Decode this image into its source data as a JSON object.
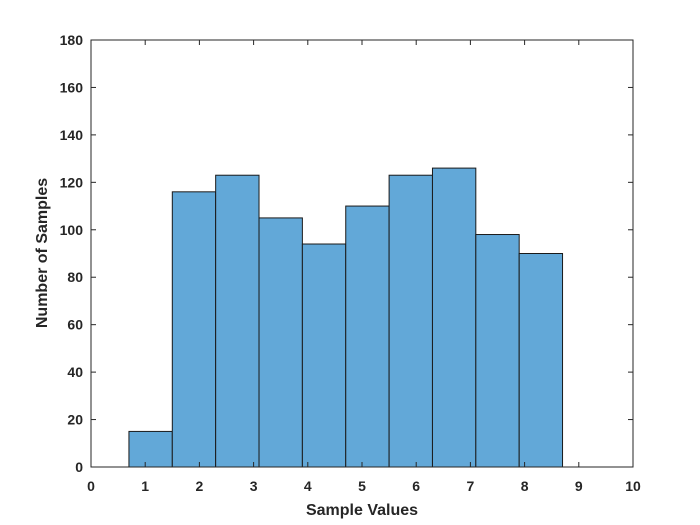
{
  "chart_data": {
    "type": "bar",
    "subtype": "histogram",
    "xlabel": "Sample Values",
    "ylabel": "Number of Samples",
    "xlim": [
      0,
      10
    ],
    "ylim": [
      0,
      180
    ],
    "x_ticks": [
      0,
      1,
      2,
      3,
      4,
      5,
      6,
      7,
      8,
      9,
      10
    ],
    "y_ticks": [
      0,
      20,
      40,
      60,
      80,
      100,
      120,
      140,
      160,
      180
    ],
    "bins": [
      {
        "start": 0.7,
        "end": 1.5,
        "value": 15
      },
      {
        "start": 1.5,
        "end": 2.3,
        "value": 116
      },
      {
        "start": 2.3,
        "end": 3.1,
        "value": 123
      },
      {
        "start": 3.1,
        "end": 3.9,
        "value": 105
      },
      {
        "start": 3.9,
        "end": 4.7,
        "value": 94
      },
      {
        "start": 4.7,
        "end": 5.5,
        "value": 110
      },
      {
        "start": 5.5,
        "end": 6.3,
        "value": 123
      },
      {
        "start": 6.3,
        "end": 7.1,
        "value": 126
      },
      {
        "start": 7.1,
        "end": 7.9,
        "value": 98
      },
      {
        "start": 7.9,
        "end": 8.7,
        "value": 90
      }
    ],
    "bar_color": "#62a8d8",
    "edge_color": "#1a1a1a",
    "grid": false
  }
}
